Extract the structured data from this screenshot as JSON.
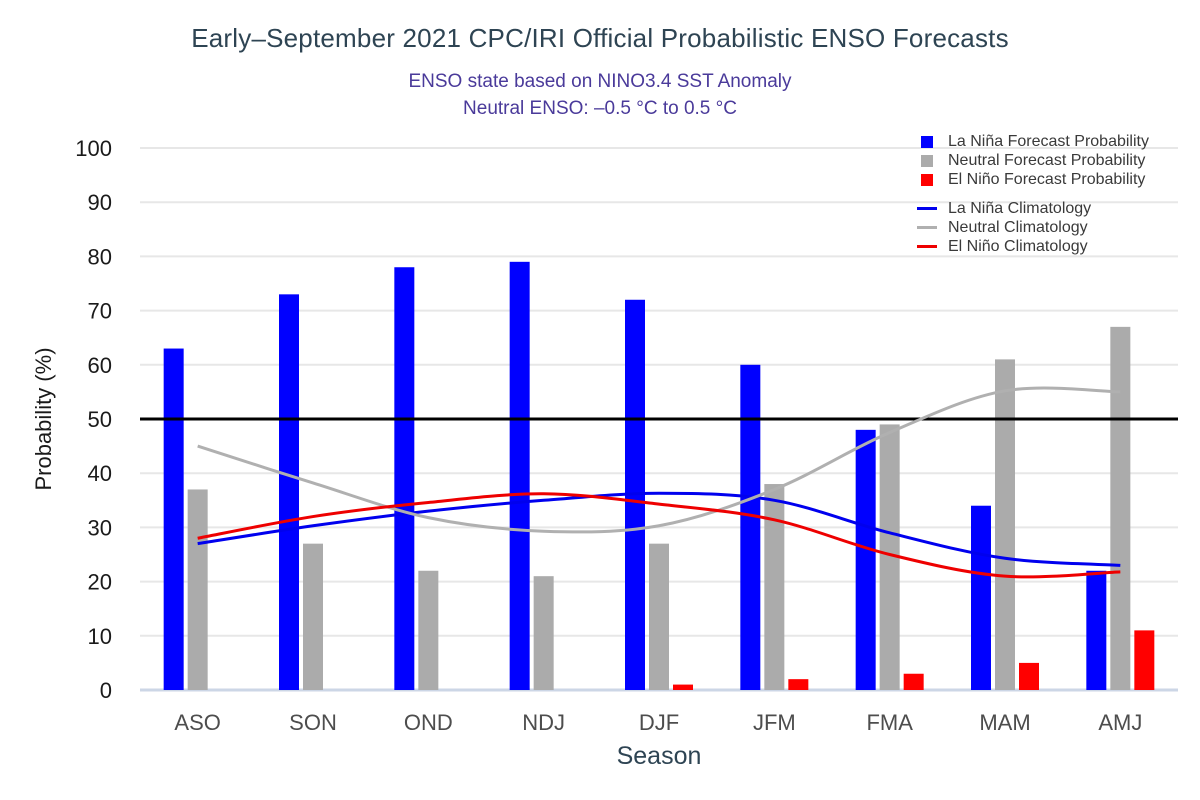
{
  "chart_data": {
    "type": "bar+line",
    "title": "Early–September 2021 CPC/IRI Official Probabilistic ENSO Forecasts",
    "subtitle1": "ENSO state based on NINO3.4 SST Anomaly",
    "subtitle2": "Neutral ENSO: –0.5 °C to 0.5 °C",
    "xlabel": "Season",
    "ylabel": "Probability (%)",
    "categories": [
      "ASO",
      "SON",
      "OND",
      "NDJ",
      "DJF",
      "JFM",
      "FMA",
      "MAM",
      "AMJ"
    ],
    "ylim": [
      0,
      100
    ],
    "ytick_step": 10,
    "grid": true,
    "legend_position": "top-right",
    "reference_line": {
      "y": 50,
      "color": "#000000"
    },
    "bar_series": [
      {
        "name": "La Niña Forecast Probability",
        "color": "#0000ff",
        "values": [
          63,
          73,
          78,
          79,
          72,
          60,
          48,
          34,
          22
        ]
      },
      {
        "name": "Neutral Forecast Probability",
        "color": "#ababab",
        "values": [
          37,
          27,
          22,
          21,
          27,
          38,
          49,
          61,
          67
        ]
      },
      {
        "name": "El Niño Forecast Probability",
        "color": "#ff0000",
        "values": [
          0,
          0,
          0,
          0,
          1,
          2,
          3,
          5,
          11
        ]
      }
    ],
    "line_series": [
      {
        "name": "La Niña Climatology",
        "color": "#0000ee",
        "values": [
          27,
          30.3,
          33,
          35,
          36.3,
          35,
          29,
          24.3,
          23
        ]
      },
      {
        "name": "Neutral Climatology",
        "color": "#b0b0b0",
        "values": [
          45,
          38.2,
          31.8,
          29.3,
          30.3,
          37,
          47.5,
          55.2,
          55
        ]
      },
      {
        "name": "El Niño Climatology",
        "color": "#ee0000",
        "values": [
          28,
          32,
          34.6,
          36.2,
          34.3,
          31.4,
          25,
          21,
          21.8
        ]
      }
    ]
  },
  "palette": {
    "background": "#ffffff",
    "title": "#2e4453",
    "subtitle": "#4a3a9a",
    "grid": "#e7e7e7",
    "baseline": "#ccd6e6",
    "fifty_line": "#000000",
    "y_tick": "#1a1a1a",
    "x_tick": "#4d4d4d",
    "axis_title": "#2e4453",
    "legend_text": "#3a3a3a"
  }
}
